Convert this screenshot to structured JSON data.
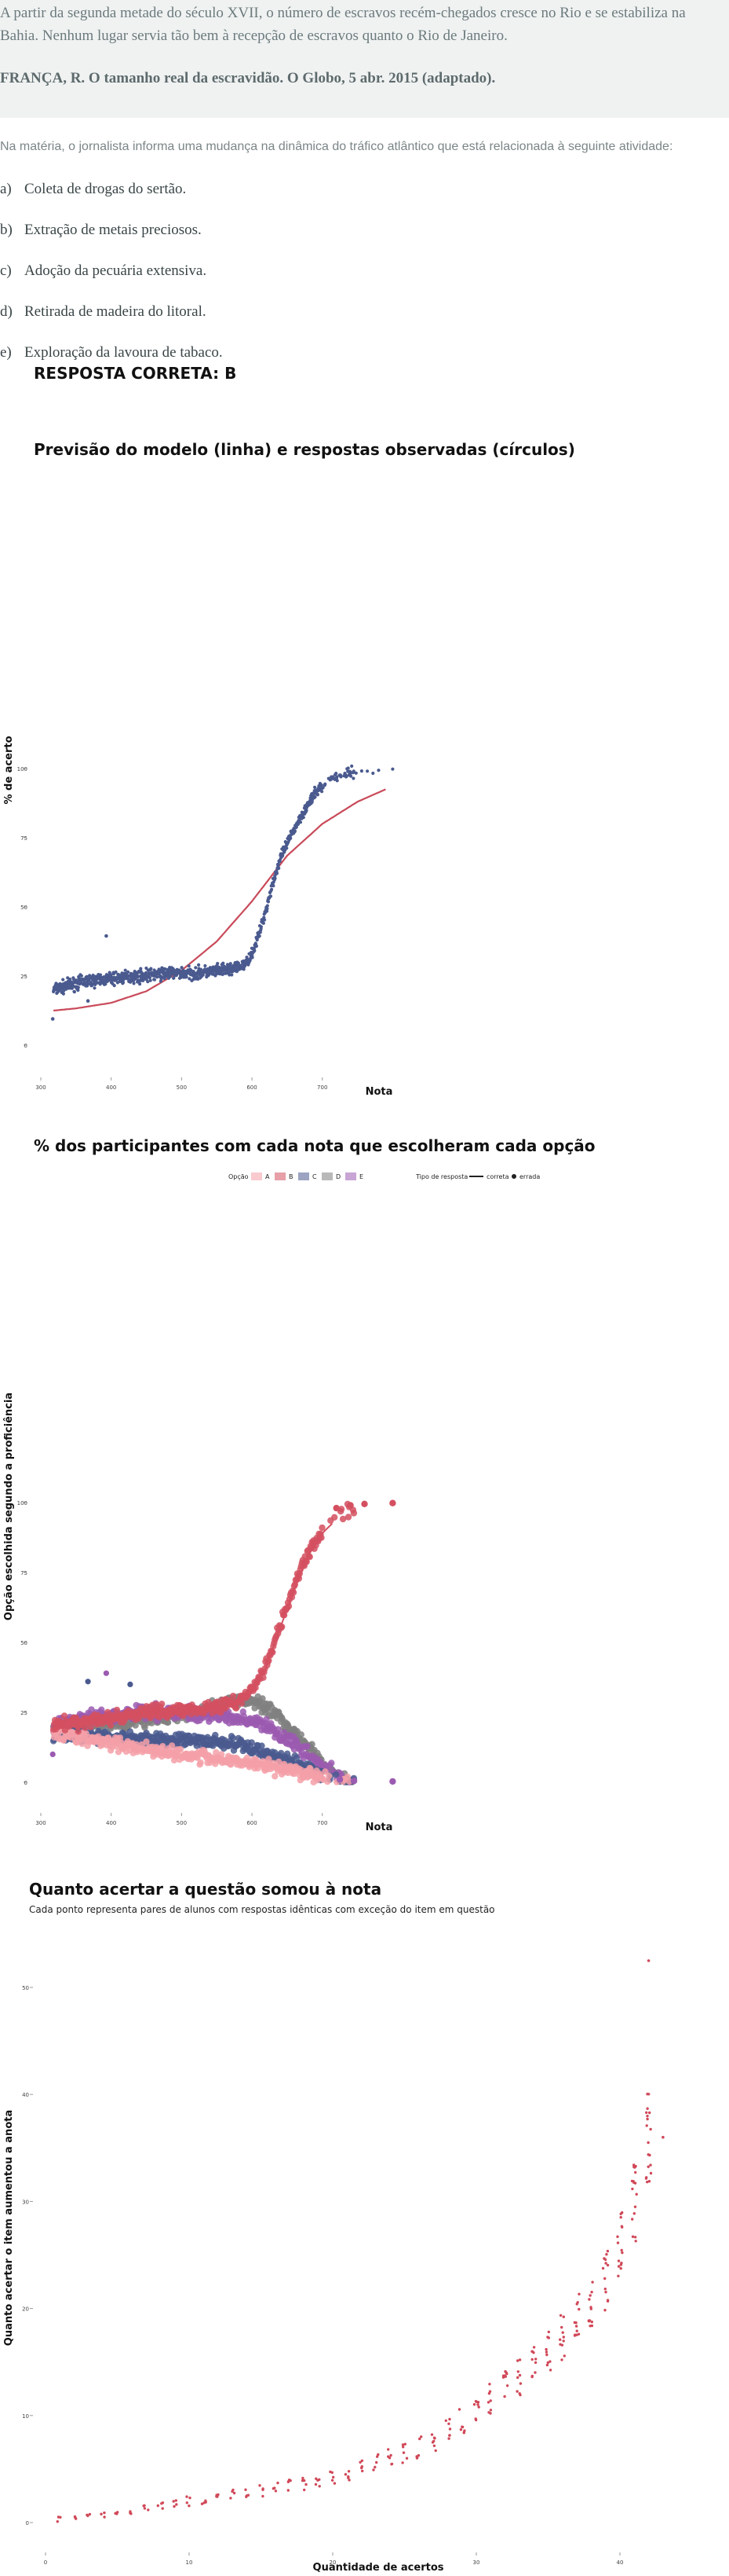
{
  "question": {
    "text": "A partir da segunda metade do século XVII, o número de escravos recém-chegados cresce no Rio e se estabiliza na Bahia. Nenhum lugar servia tão bem à recepção de escravos quanto o Rio de Janeiro.",
    "source": "FRANÇA, R. O tamanho real da escravidão. O Globo, 5 abr. 2015 (adaptado).",
    "prompt": "Na matéria, o jornalista informa uma mudança na dinâmica do tráfico atlântico que está relacionada à seguinte atividade:",
    "options": [
      {
        "letter": "a)",
        "text": "Coleta de drogas do sertão."
      },
      {
        "letter": "b)",
        "text": "Extração de metais preciosos."
      },
      {
        "letter": "c)",
        "text": "Adoção da pecuária extensiva."
      },
      {
        "letter": "d)",
        "text": "Retirada de madeira do litoral."
      },
      {
        "letter": "e)",
        "text": "Exploração da lavoura de tabaco."
      }
    ],
    "answer": "RESPOSTA CORRETA: B"
  },
  "colors": {
    "points": "#4a5a8f",
    "curve": "#c94a5a",
    "A": "#f4a0a8",
    "B": "#d45060",
    "C": "#4a5a8f",
    "D": "#808080",
    "E": "#9b5bb0",
    "scatter3": "#d04858"
  },
  "chart_data": [
    {
      "type": "scatter",
      "title": "Previsão do modelo (linha) e respostas observadas (círculos)",
      "xlabel": "Nota",
      "ylabel": "% de acerto",
      "xlim": [
        300,
        800
      ],
      "ylim": [
        0,
        100
      ],
      "xticks": [
        300,
        400,
        500,
        600,
        700
      ],
      "yticks": [
        0,
        25,
        50,
        75,
        100
      ],
      "observed": {
        "x": [
          318,
          330,
          345,
          360,
          380,
          400,
          420,
          440,
          460,
          480,
          500,
          520,
          540,
          560,
          570,
          580,
          590,
          600,
          610,
          620,
          630,
          640,
          650,
          660,
          670,
          680,
          690,
          700,
          710,
          720,
          740,
          760
        ],
        "y": [
          20,
          21,
          22,
          23,
          23.5,
          24,
          24.5,
          25,
          25.5,
          26,
          26,
          26,
          26.5,
          27,
          27.5,
          28,
          29,
          33,
          40,
          49,
          59,
          67,
          73,
          78,
          83,
          87,
          91,
          94,
          96,
          97,
          98.5,
          99.5
        ]
      },
      "outliers": {
        "x": [
          317,
          367,
          393
        ],
        "y": [
          9.5,
          16,
          39.5
        ]
      },
      "model": {
        "x": [
          318,
          350,
          400,
          450,
          500,
          550,
          600,
          650,
          700,
          750,
          790
        ],
        "y": [
          12.5,
          13.3,
          15.3,
          19.5,
          27,
          37.5,
          52,
          68.5,
          80,
          88,
          92.5
        ]
      }
    },
    {
      "type": "scatter",
      "title": "% dos participantes com cada nota que escolheram cada opção",
      "xlabel": "Nota",
      "ylabel": "Opção escolhida segundo a proficiência",
      "xlim": [
        300,
        800
      ],
      "ylim": [
        0,
        100
      ],
      "xticks": [
        300,
        400,
        500,
        600,
        700
      ],
      "yticks": [
        0,
        25,
        50,
        75,
        100
      ],
      "legend": {
        "option_title": "Opção",
        "options": [
          "A",
          "B",
          "C",
          "D",
          "E"
        ],
        "type_title": "Tipo de resposta",
        "types": [
          "correta",
          "errada"
        ]
      },
      "x": [
        318,
        350,
        400,
        450,
        500,
        550,
        580,
        600,
        620,
        640,
        660,
        680,
        700,
        720,
        740,
        760
      ],
      "series": [
        {
          "name": "A",
          "values": [
            18,
            16,
            14,
            12,
            10,
            8.5,
            7.5,
            7,
            6,
            5,
            4,
            3,
            2,
            1,
            0.5,
            0
          ]
        },
        {
          "name": "B",
          "values": [
            20,
            21,
            23,
            25,
            26,
            27,
            29,
            33,
            42,
            56,
            70,
            82,
            90,
            95,
            98,
            99.5
          ]
        },
        {
          "name": "C",
          "values": [
            17,
            16.5,
            16,
            15.5,
            15,
            14.5,
            13.5,
            12,
            10.5,
            9,
            7,
            5,
            3,
            1.5,
            0.5,
            0
          ]
        },
        {
          "name": "D",
          "values": [
            19,
            20,
            21,
            22,
            24,
            27,
            29.5,
            29,
            27,
            23,
            18,
            12,
            7,
            3,
            1,
            0
          ]
        },
        {
          "name": "E",
          "values": [
            20,
            22,
            24,
            25,
            25,
            24,
            23,
            22,
            20,
            17,
            14,
            10,
            6,
            3,
            1,
            0
          ]
        }
      ],
      "outliers": {
        "x": [
          317,
          367,
          393,
          427
        ],
        "y": [
          10,
          36,
          39,
          35
        ]
      }
    },
    {
      "type": "scatter",
      "title": "Quanto acertar a questão somou à nota",
      "subtitle": "Cada ponto representa pares de alunos com respostas idênticas com exceção do item em questão",
      "xlabel": "Quantidade de acertos",
      "ylabel": "Quanto acertar o item aumentou a anota",
      "xlim": [
        0,
        45
      ],
      "ylim": [
        0,
        55
      ],
      "xticks": [
        0,
        10,
        20,
        30,
        40
      ],
      "yticks": [
        0,
        10,
        20,
        30,
        40,
        50
      ],
      "x": [
        1,
        2,
        3,
        4,
        5,
        6,
        7,
        8,
        9,
        10,
        11,
        12,
        13,
        14,
        15,
        16,
        17,
        18,
        19,
        20,
        21,
        22,
        23,
        24,
        25,
        26,
        27,
        28,
        29,
        30,
        31,
        32,
        33,
        34,
        35,
        36,
        37,
        38,
        39,
        40,
        41,
        42
      ],
      "y": [
        0.3,
        0.5,
        0.6,
        0.7,
        0.9,
        1.1,
        1.3,
        1.5,
        1.7,
        2,
        2.2,
        2.4,
        2.6,
        2.8,
        3,
        3.2,
        3.4,
        3.6,
        3.9,
        4.1,
        4.5,
        5,
        5.5,
        6,
        6.5,
        7,
        7.8,
        8.5,
        9.5,
        10.5,
        11.5,
        12.5,
        13.5,
        14.5,
        16,
        17.5,
        19,
        20.5,
        22.5,
        26,
        30,
        36
      ],
      "outliers": {
        "x": [
          42,
          43
        ],
        "y": [
          52.5,
          36
        ]
      }
    }
  ]
}
